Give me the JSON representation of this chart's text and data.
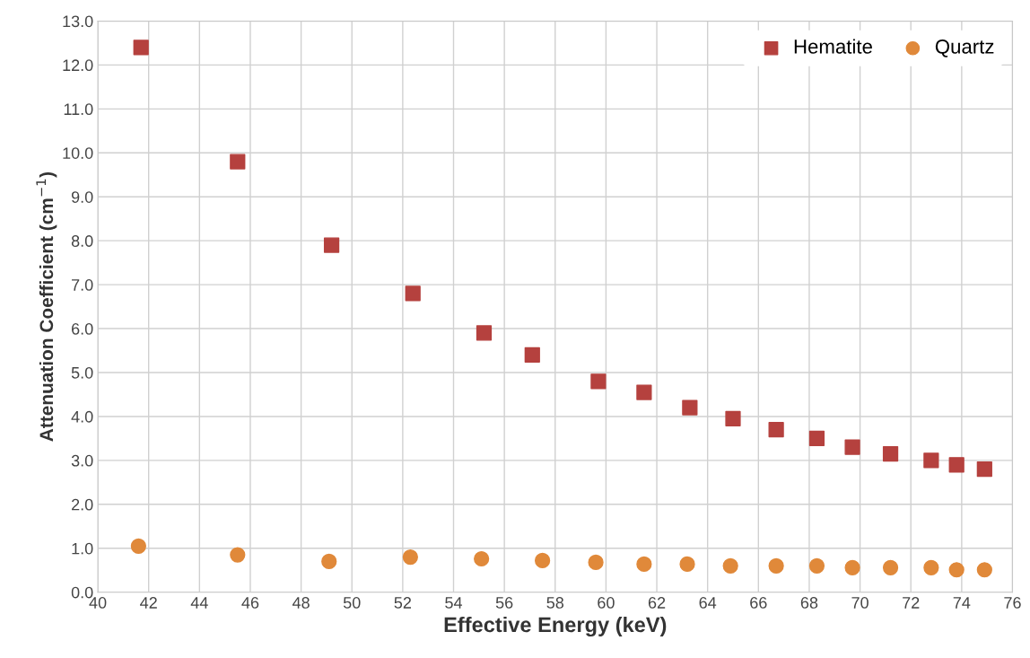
{
  "chart_data": {
    "type": "scatter",
    "xlabel": "Effective Energy (keV)",
    "ylabel": "Attenuation Coefficient (cm$^{−1}$)",
    "xlim": [
      40,
      76
    ],
    "xticks": [
      40,
      42,
      44,
      46,
      48,
      50,
      52,
      54,
      56,
      58,
      60,
      62,
      64,
      66,
      68,
      70,
      72,
      74,
      76
    ],
    "ylim": [
      0,
      13
    ],
    "yticks": [
      {
        "value": 0,
        "label": "0.0"
      },
      {
        "value": 1,
        "label": "1.0"
      },
      {
        "value": 2,
        "label": "2.0"
      },
      {
        "value": 3,
        "label": "3.0"
      },
      {
        "value": 4,
        "label": "4.0"
      },
      {
        "value": 5,
        "label": "5.0"
      },
      {
        "value": 6,
        "label": "6.0"
      },
      {
        "value": 7,
        "label": "7.0"
      },
      {
        "value": 8,
        "label": "8.0"
      },
      {
        "value": 9,
        "label": "9.0"
      },
      {
        "value": 10,
        "label": "10.0"
      },
      {
        "value": 11,
        "label": "11.0"
      },
      {
        "value": 12,
        "label": "12.0"
      },
      {
        "value": 13,
        "label": "13.0"
      }
    ],
    "grid": true,
    "legend": "top right",
    "series": [
      {
        "name": "Hematite",
        "color": "#b5413e",
        "marker": "square",
        "x": [
          41.7,
          45.5,
          49.2,
          52.4,
          55.2,
          57.1,
          59.7,
          61.5,
          63.3,
          65.0,
          66.7,
          68.3,
          69.7,
          71.2,
          72.8,
          73.8,
          74.9
        ],
        "values": [
          12.4,
          9.8,
          7.9,
          6.8,
          5.9,
          5.4,
          4.8,
          4.55,
          4.2,
          3.95,
          3.7,
          3.5,
          3.3,
          3.15,
          3.0,
          2.9,
          2.8
        ]
      },
      {
        "name": "Quartz",
        "color": "#e0893a",
        "marker": "circle",
        "x": [
          41.6,
          45.5,
          49.1,
          52.3,
          55.1,
          57.5,
          59.6,
          61.5,
          63.2,
          64.9,
          66.7,
          68.3,
          69.7,
          71.2,
          72.8,
          73.8,
          74.9
        ],
        "values": [
          1.05,
          0.85,
          0.7,
          0.8,
          0.76,
          0.72,
          0.68,
          0.64,
          0.64,
          0.6,
          0.6,
          0.6,
          0.56,
          0.56,
          0.56,
          0.51,
          0.51
        ]
      }
    ]
  }
}
